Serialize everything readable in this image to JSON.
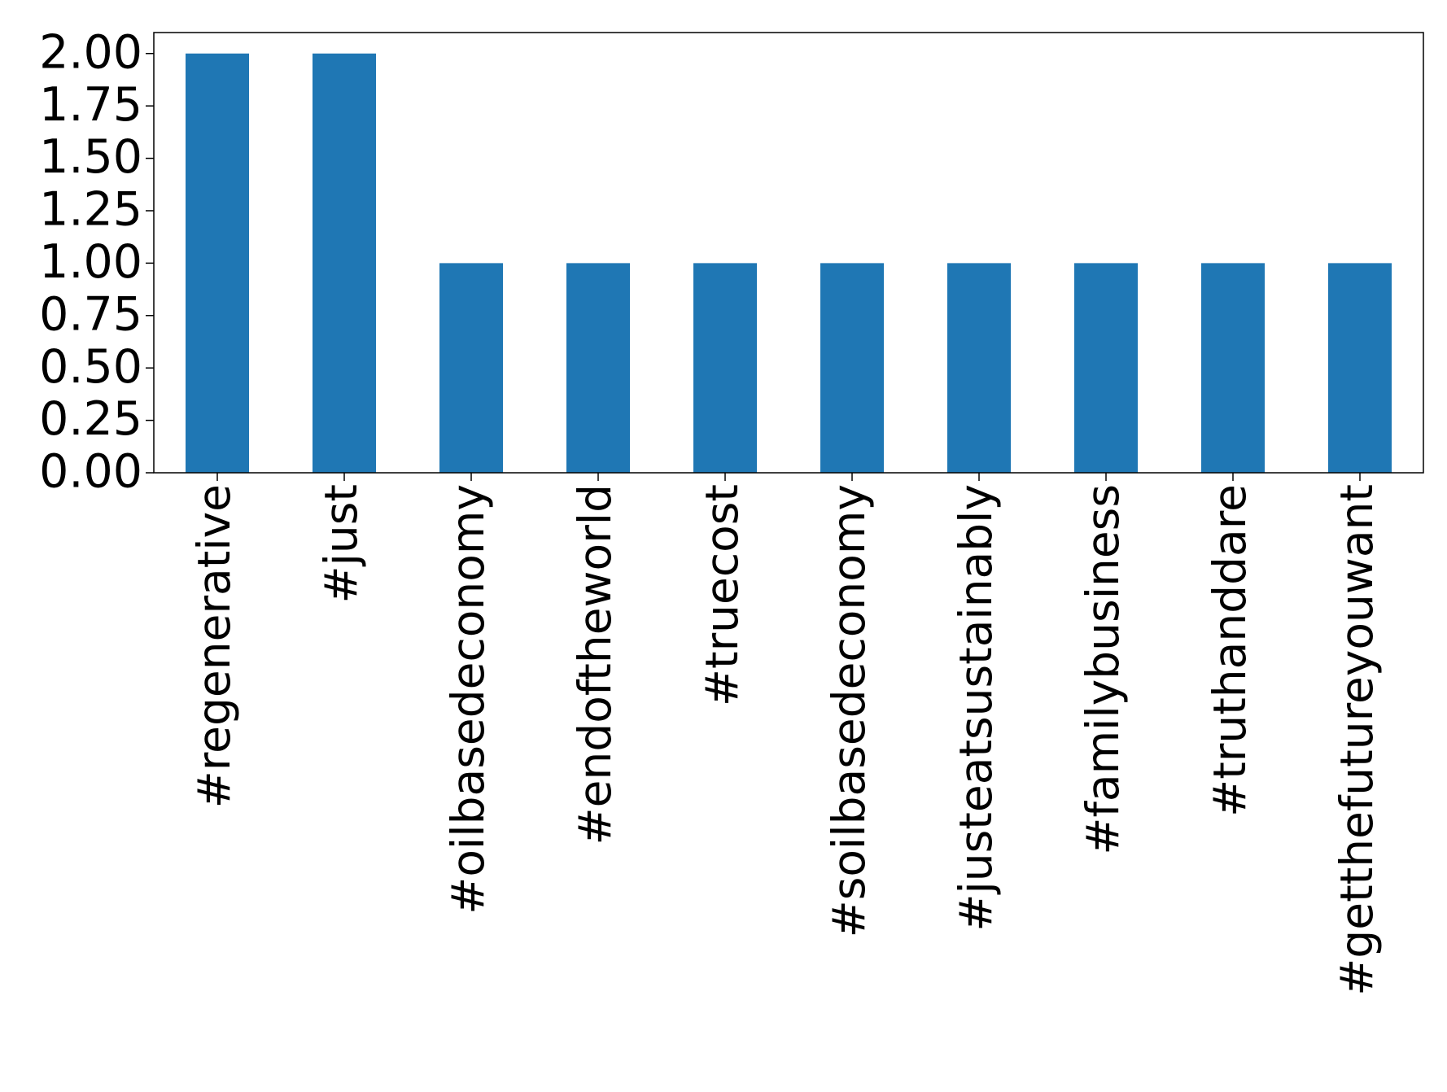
{
  "chart_data": {
    "type": "bar",
    "categories": [
      "#regenerative",
      "#just",
      "#oilbasedeconomy",
      "#endoftheworld",
      "#truecost",
      "#soilbasedeconomy",
      "#justeatsustainably",
      "#familybusiness",
      "#truthanddare",
      "#getthefutureyouwant"
    ],
    "values": [
      2,
      2,
      1,
      1,
      1,
      1,
      1,
      1,
      1,
      1
    ],
    "color": "#1f77b4",
    "ylim": [
      0,
      2.1
    ],
    "yticks": [
      {
        "value": 0,
        "label": "0.00"
      },
      {
        "value": 0.25,
        "label": "0.25"
      },
      {
        "value": 0.5,
        "label": "0.50"
      },
      {
        "value": 0.75,
        "label": "0.75"
      },
      {
        "value": 1,
        "label": "1.00"
      },
      {
        "value": 1.25,
        "label": "1.25"
      },
      {
        "value": 1.5,
        "label": "1.50"
      },
      {
        "value": 1.75,
        "label": "1.75"
      },
      {
        "value": 2,
        "label": "2.00"
      }
    ],
    "grid": false
  }
}
